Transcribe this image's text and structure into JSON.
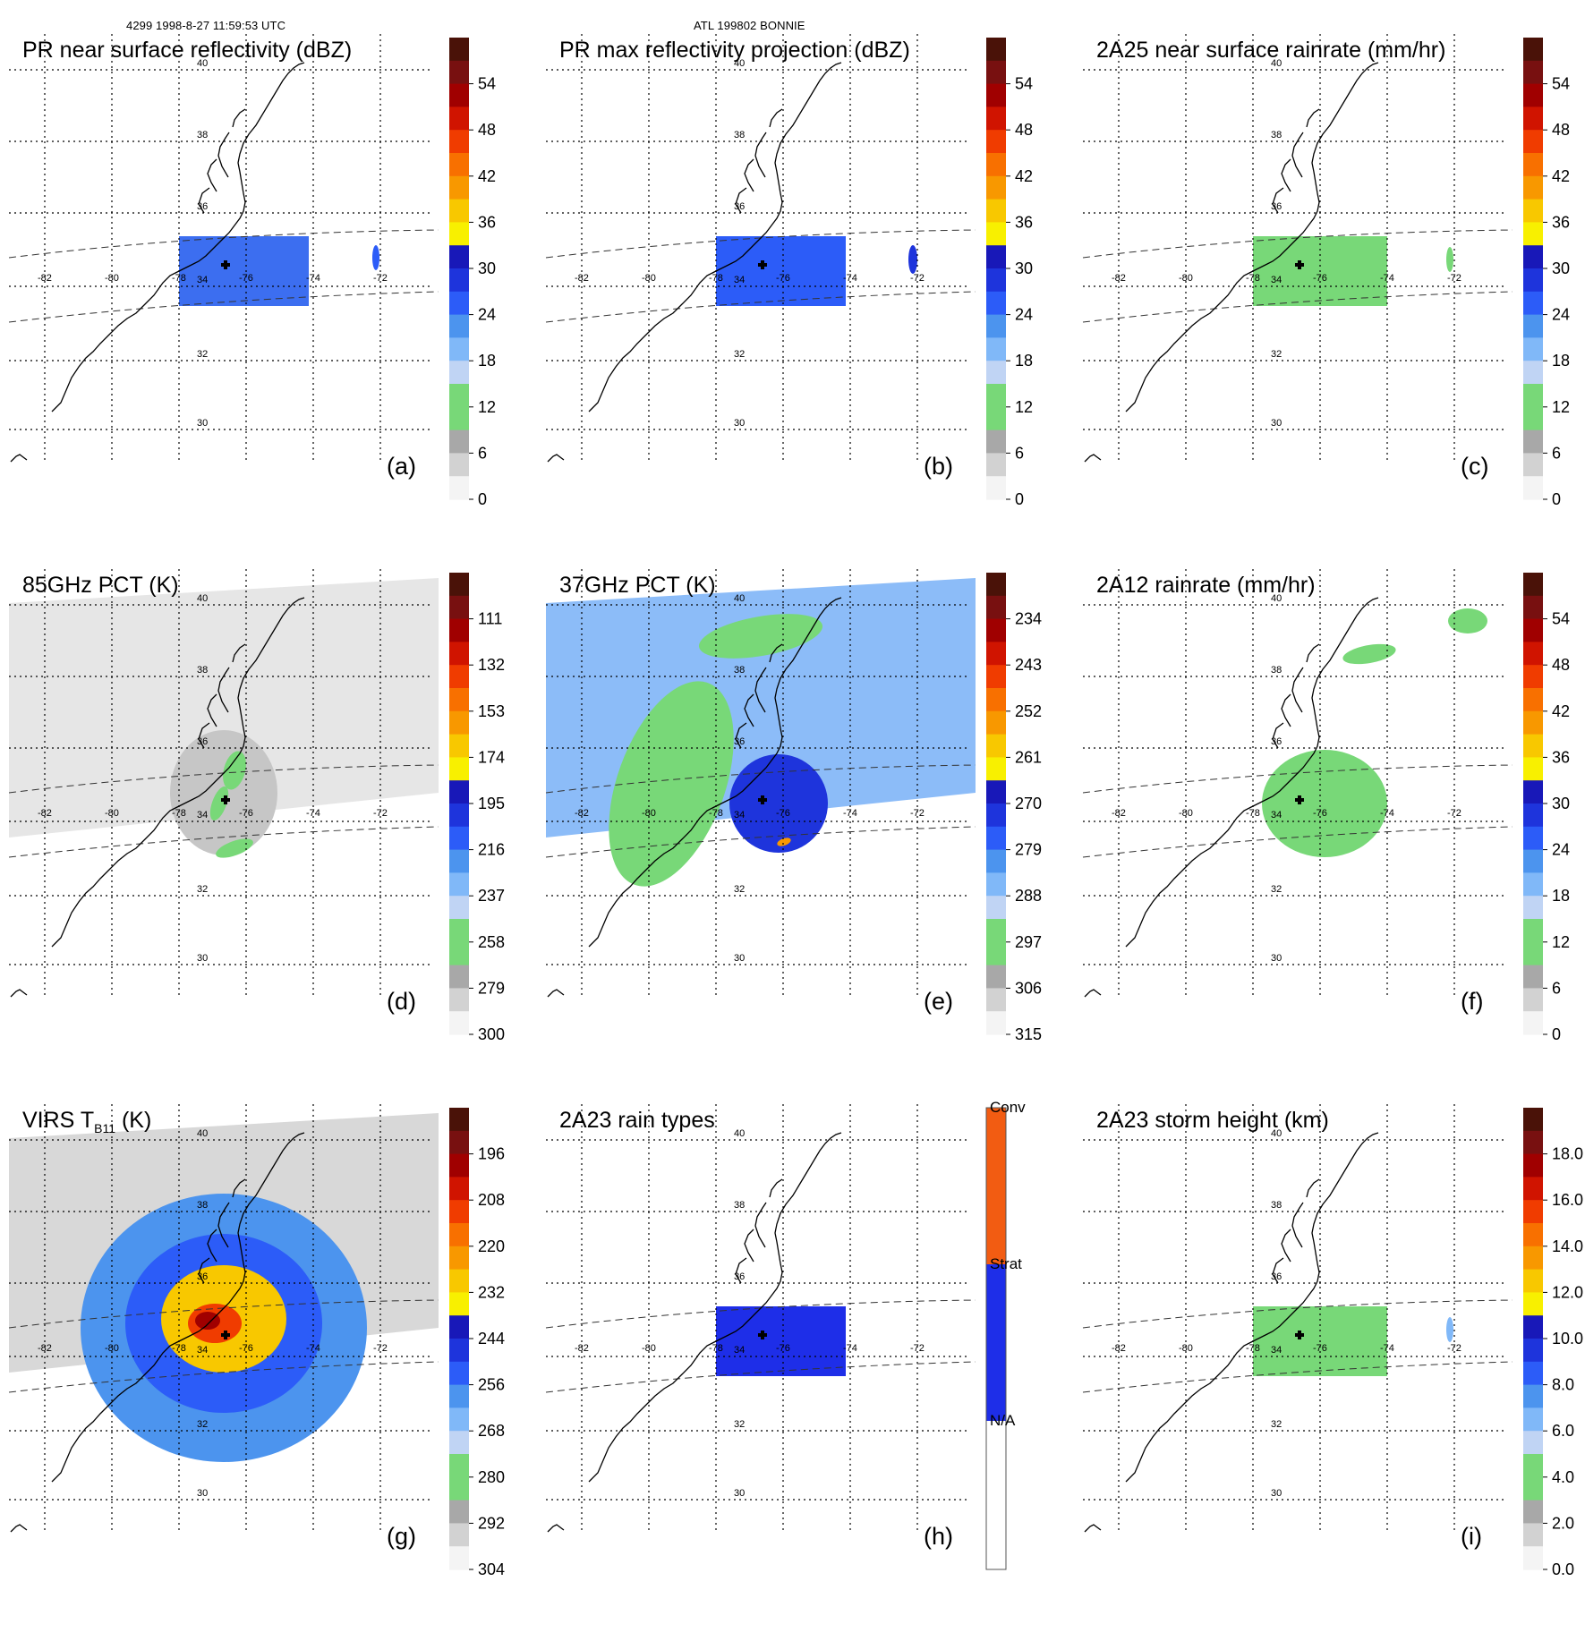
{
  "figure": {
    "header_left": "4299 1998-8-27 11:59:53 UTC",
    "header_center": "ATL 199802 BONNIE"
  },
  "lat_labels": [
    "40",
    "38",
    "36",
    "34",
    "32",
    "30"
  ],
  "lon_labels": [
    "-82",
    "-80",
    "-78",
    "-76",
    "-74",
    "-72"
  ],
  "colors": {
    "grey_scale": [
      "#f4f4f4",
      "#d2d2d2",
      "#a8a8a8"
    ],
    "green": "#78d878",
    "light_blue": [
      "#c0d4f4",
      "#80b8f8",
      "#4c94ee"
    ],
    "blue": [
      "#2c5cf8",
      "#1e34dc",
      "#1818b8"
    ],
    "warm": [
      "#f8f000",
      "#f8c800",
      "#f89800",
      "#f87000",
      "#f03c00",
      "#d01400",
      "#a00000",
      "#781010",
      "#4a1208"
    ]
  },
  "panels": [
    {
      "id": "a",
      "title": "PR near surface reflectivity (dBZ)",
      "label": "(a)",
      "ticks": [
        "54",
        "48",
        "42",
        "36",
        "30",
        "24",
        "18",
        "12",
        "6",
        "0"
      ]
    },
    {
      "id": "b",
      "title": "PR max reflectivity projection (dBZ)",
      "label": "(b)",
      "ticks": [
        "54",
        "48",
        "42",
        "36",
        "30",
        "24",
        "18",
        "12",
        "6",
        "0"
      ]
    },
    {
      "id": "c",
      "title": "2A25 near surface rainrate (mm/hr)",
      "label": "(c)",
      "ticks": [
        "54",
        "48",
        "42",
        "36",
        "30",
        "24",
        "18",
        "12",
        "6",
        "0"
      ]
    },
    {
      "id": "d",
      "title": "85GHz PCT (K)",
      "label": "(d)",
      "ticks": [
        "111",
        "132",
        "153",
        "174",
        "195",
        "216",
        "237",
        "258",
        "279",
        "300"
      ]
    },
    {
      "id": "e",
      "title": "37GHz PCT (K)",
      "label": "(e)",
      "ticks": [
        "234",
        "243",
        "252",
        "261",
        "270",
        "279",
        "288",
        "297",
        "306",
        "315"
      ]
    },
    {
      "id": "f",
      "title": "2A12 rainrate (mm/hr)",
      "label": "(f)",
      "ticks": [
        "54",
        "48",
        "42",
        "36",
        "30",
        "24",
        "18",
        "12",
        "6",
        "0"
      ]
    },
    {
      "id": "g",
      "title_main": "VIRS T",
      "title_sub": "B11",
      "title_units": " (K)",
      "label": "(g)",
      "ticks": [
        "196",
        "208",
        "220",
        "232",
        "244",
        "256",
        "268",
        "280",
        "292",
        "304"
      ]
    },
    {
      "id": "h",
      "title": "2A23 rain types",
      "label": "(h)",
      "ticks": [
        "Conv",
        "Strat",
        "N/A"
      ]
    },
    {
      "id": "i",
      "title": "2A23 storm height (km)",
      "label": "(i)",
      "ticks": [
        "18.0",
        "16.0",
        "14.0",
        "12.0",
        "10.0",
        "8.0",
        "6.0",
        "4.0",
        "2.0",
        "0.0"
      ]
    }
  ]
}
